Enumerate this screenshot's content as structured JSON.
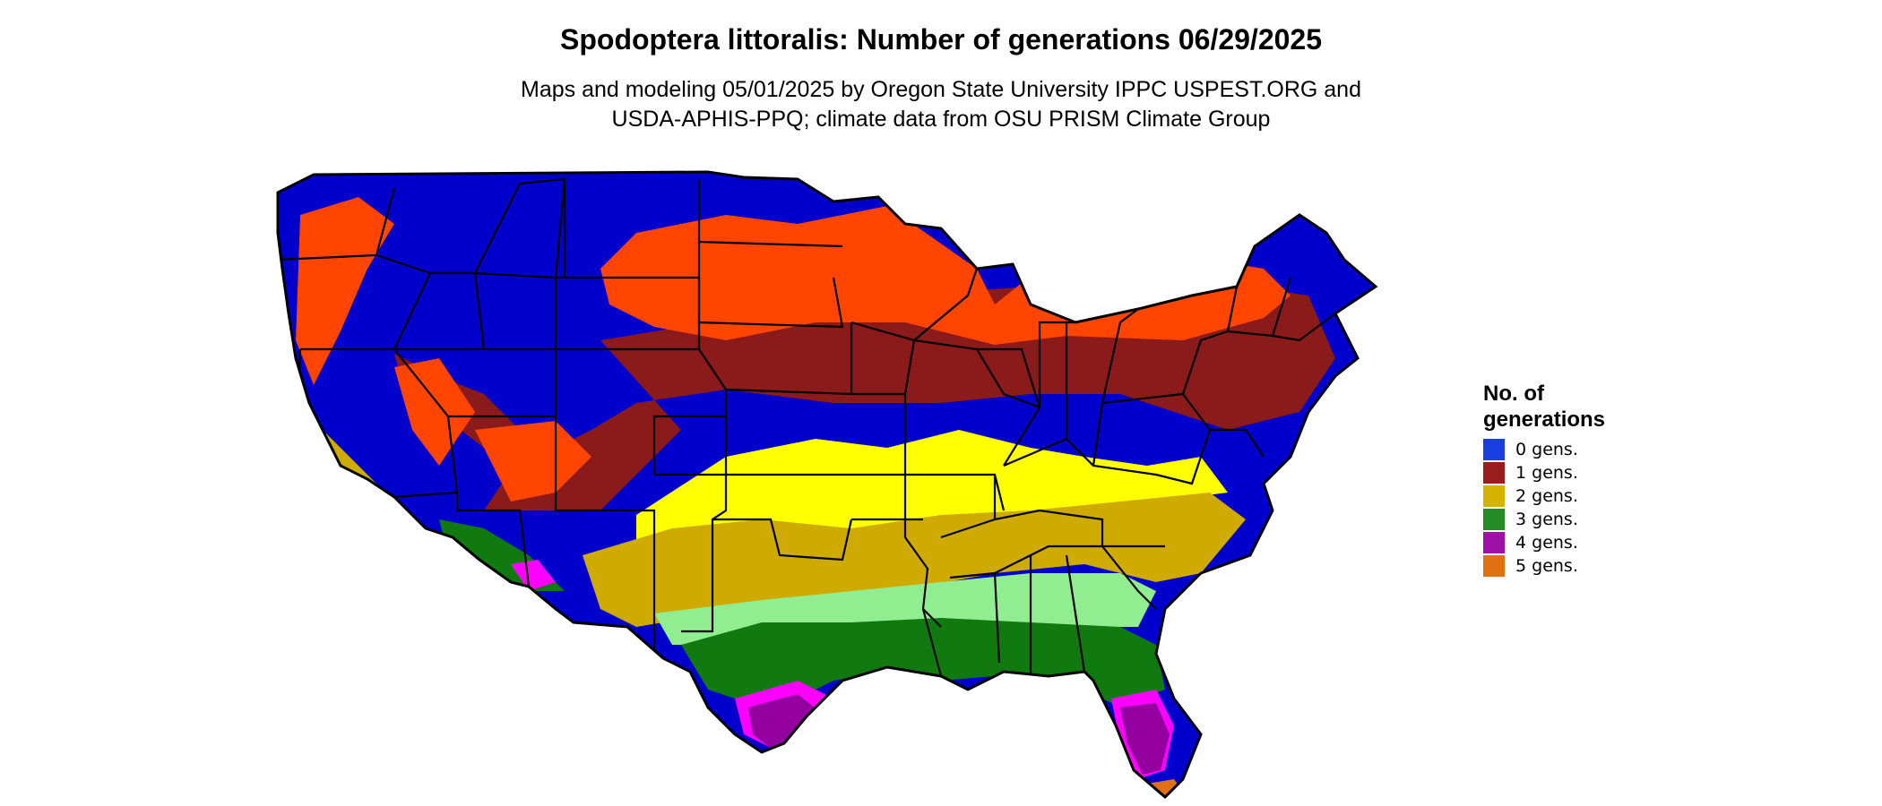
{
  "title": "Spodoptera littoralis: Number of generations 06/29/2025",
  "subtitle_lines": [
    "Maps and modeling 05/01/2025 by Oregon State University IPPC USPEST.ORG and",
    "USDA-APHIS-PPQ; climate data from OSU PRISM Climate Group"
  ],
  "legend": {
    "title_lines": [
      "No. of",
      "generations"
    ],
    "items": [
      {
        "label": "0 gens.",
        "color": "#1a3fe0"
      },
      {
        "label": "1 gens.",
        "color": "#9a1c1c"
      },
      {
        "label": "2 gens.",
        "color": "#d4b400"
      },
      {
        "label": "3 gens.",
        "color": "#228b22"
      },
      {
        "label": "4 gens.",
        "color": "#a010a8"
      },
      {
        "label": "5 gens.",
        "color": "#e07010"
      }
    ]
  },
  "map_colors": {
    "zero": "#0000cc",
    "fringe": "#ff4500",
    "one": "#8b1a1a",
    "yellow": "#ffff00",
    "two": "#cfaa00",
    "lightgreen": "#90ee90",
    "three": "#107a10",
    "magenta": "#ff00ff",
    "four": "#9400a0",
    "five": "#e07010",
    "border": "#000000"
  }
}
